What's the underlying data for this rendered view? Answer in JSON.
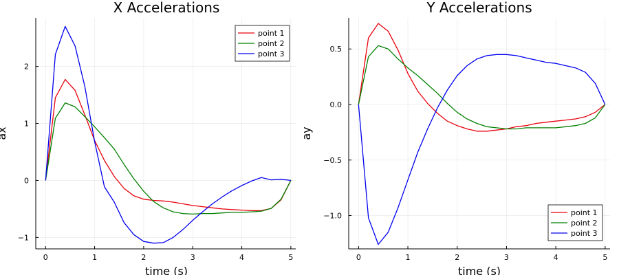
{
  "chart_data": [
    {
      "type": "line",
      "title": "X Accelerations",
      "xlabel": "time (s)",
      "ylabel": "ax",
      "xlim": [
        -0.2,
        5.1
      ],
      "ylim": [
        -1.2,
        2.85
      ],
      "xticks": [
        0,
        1,
        2,
        3,
        4,
        5
      ],
      "yticks": [
        -1,
        0,
        1,
        2
      ],
      "grid": true,
      "legend_position": "top-right",
      "x": [
        0,
        0.2,
        0.4,
        0.6,
        0.8,
        1.0,
        1.2,
        1.4,
        1.6,
        1.8,
        2.0,
        2.2,
        2.4,
        2.6,
        2.8,
        3.0,
        3.2,
        3.4,
        3.6,
        3.8,
        4.0,
        4.2,
        4.4,
        4.6,
        4.8,
        5.0
      ],
      "series": [
        {
          "name": "point 1",
          "color": "#e8000b",
          "values": [
            0,
            1.45,
            1.77,
            1.58,
            1.15,
            0.7,
            0.35,
            0.07,
            -0.14,
            -0.27,
            -0.33,
            -0.35,
            -0.36,
            -0.38,
            -0.41,
            -0.44,
            -0.46,
            -0.48,
            -0.5,
            -0.51,
            -0.52,
            -0.53,
            -0.53,
            -0.49,
            -0.34,
            0
          ]
        },
        {
          "name": "point 2",
          "color": "#008000",
          "values": [
            0,
            1.09,
            1.36,
            1.29,
            1.12,
            0.94,
            0.75,
            0.55,
            0.28,
            0.03,
            -0.19,
            -0.37,
            -0.48,
            -0.55,
            -0.58,
            -0.59,
            -0.58,
            -0.58,
            -0.57,
            -0.56,
            -0.56,
            -0.55,
            -0.54,
            -0.49,
            -0.33,
            0
          ]
        },
        {
          "name": "point 3",
          "color": "#0000ee",
          "values": [
            0,
            2.21,
            2.7,
            2.36,
            1.65,
            0.68,
            -0.11,
            -0.38,
            -0.74,
            -0.95,
            -1.07,
            -1.1,
            -1.09,
            -1.0,
            -0.86,
            -0.7,
            -0.55,
            -0.41,
            -0.29,
            -0.18,
            -0.09,
            -0.01,
            0.05,
            0.01,
            0.02,
            0
          ]
        }
      ]
    },
    {
      "type": "line",
      "title": "Y Accelerations",
      "xlabel": "time (s)",
      "ylabel": "ay",
      "xlim": [
        -0.2,
        5.1
      ],
      "ylim": [
        -1.3,
        0.78
      ],
      "xticks": [
        0,
        1,
        2,
        3,
        4,
        5
      ],
      "yticks": [
        -1.0,
        -0.5,
        0.0,
        0.5
      ],
      "ytick_labels": [
        "−1.0",
        "−0.5",
        "0.0",
        "0.5"
      ],
      "grid": true,
      "legend_position": "bottom-right",
      "x": [
        0,
        0.2,
        0.4,
        0.6,
        0.8,
        1.0,
        1.2,
        1.4,
        1.6,
        1.8,
        2.0,
        2.2,
        2.4,
        2.6,
        2.8,
        3.0,
        3.2,
        3.4,
        3.6,
        3.8,
        4.0,
        4.2,
        4.4,
        4.6,
        4.8,
        5.0
      ],
      "series": [
        {
          "name": "point 1",
          "color": "#e8000b",
          "values": [
            0,
            0.6,
            0.73,
            0.66,
            0.49,
            0.28,
            0.12,
            0.01,
            -0.08,
            -0.15,
            -0.19,
            -0.22,
            -0.24,
            -0.24,
            -0.23,
            -0.22,
            -0.2,
            -0.19,
            -0.17,
            -0.16,
            -0.15,
            -0.14,
            -0.13,
            -0.11,
            -0.07,
            0
          ]
        },
        {
          "name": "point 2",
          "color": "#008000",
          "values": [
            0,
            0.43,
            0.53,
            0.5,
            0.41,
            0.33,
            0.26,
            0.18,
            0.1,
            0.01,
            -0.07,
            -0.13,
            -0.17,
            -0.2,
            -0.21,
            -0.22,
            -0.22,
            -0.21,
            -0.21,
            -0.21,
            -0.21,
            -0.2,
            -0.19,
            -0.17,
            -0.12,
            0
          ]
        },
        {
          "name": "point 3",
          "color": "#0000ee",
          "values": [
            0,
            -1.02,
            -1.26,
            -1.15,
            -0.93,
            -0.68,
            -0.43,
            -0.22,
            -0.03,
            0.13,
            0.26,
            0.35,
            0.41,
            0.44,
            0.45,
            0.45,
            0.44,
            0.42,
            0.4,
            0.38,
            0.37,
            0.35,
            0.33,
            0.29,
            0.19,
            0
          ]
        }
      ]
    }
  ]
}
